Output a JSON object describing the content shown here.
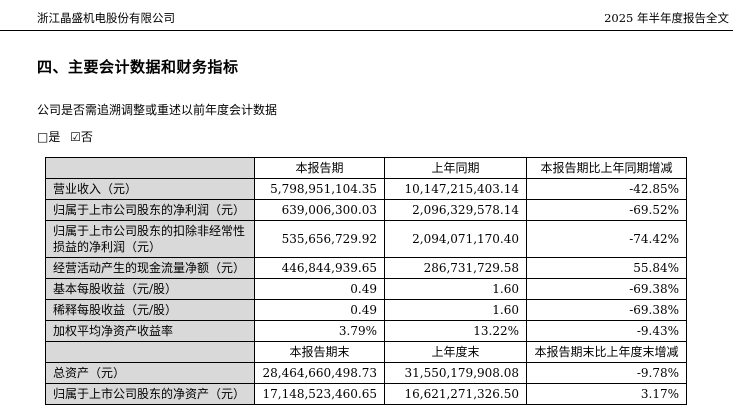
{
  "page_header": {
    "company": "浙江晶盛机电股份有限公司",
    "report_name": "2025 年半年度报告全文"
  },
  "section": {
    "title": "四、主要会计数据和财务指标",
    "question": "公司是否需追溯调整或重述以前年度会计数据",
    "checkbox_yes": "□是",
    "checkbox_no": "☑否"
  },
  "colors": {
    "label_cell_bg": "#d9d9d9",
    "border": "#000000",
    "text": "#000000"
  },
  "table": {
    "period_header": [
      "",
      "本报告期",
      "上年同期",
      "本报告期比上年同期增减"
    ],
    "period_rows": [
      [
        "营业收入（元）",
        "5,798,951,104.35",
        "10,147,215,403.14",
        "-42.85%"
      ],
      [
        "归属于上市公司股东的净利润（元）",
        "639,006,300.03",
        "2,096,329,578.14",
        "-69.52%"
      ],
      [
        "归属于上市公司股东的扣除非经常性损益的净利润（元）",
        "535,656,729.92",
        "2,094,071,170.40",
        "-74.42%"
      ],
      [
        "经营活动产生的现金流量净额（元）",
        "446,844,939.65",
        "286,731,729.58",
        "55.84%"
      ],
      [
        "基本每股收益（元/股）",
        "0.49",
        "1.60",
        "-69.38%"
      ],
      [
        "稀释每股收益（元/股）",
        "0.49",
        "1.60",
        "-69.38%"
      ],
      [
        "加权平均净资产收益率",
        "3.79%",
        "13.22%",
        "-9.43%"
      ]
    ],
    "period_end_header": [
      "",
      "本报告期末",
      "上年度末",
      "本报告期末比上年度末增减"
    ],
    "period_end_rows": [
      [
        "总资产（元）",
        "28,464,660,498.73",
        "31,550,179,908.08",
        "-9.78%"
      ],
      [
        "归属于上市公司股东的净资产（元）",
        "17,148,523,460.65",
        "16,621,271,326.50",
        "3.17%"
      ]
    ]
  }
}
